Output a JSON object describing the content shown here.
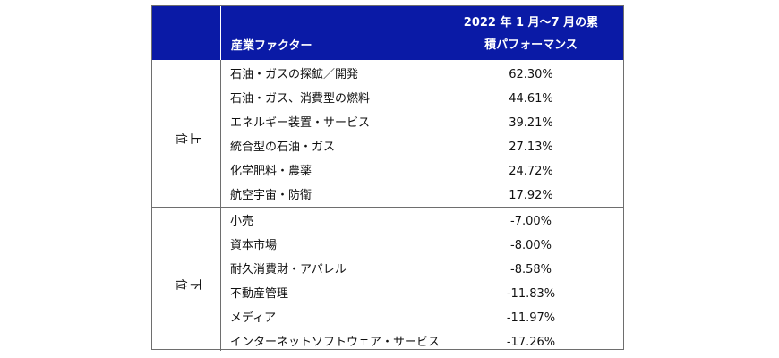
{
  "header": {
    "factor_label": "産業ファクター",
    "performance_label_line1": "2022 年 1 月～7 月の累",
    "performance_label_line2": "積パフォーマンス"
  },
  "sections": [
    {
      "label": "上位",
      "rows": [
        {
          "name": "石油・ガスの探鉱／開発",
          "value": "62.30%"
        },
        {
          "name": "石油・ガス、消費型の燃料",
          "value": "44.61%"
        },
        {
          "name": "エネルギー装置・サービス",
          "value": "39.21%"
        },
        {
          "name": "統合型の石油・ガス",
          "value": "27.13%"
        },
        {
          "name": "化学肥料・農薬",
          "value": "24.72%"
        },
        {
          "name": "航空宇宙・防衛",
          "value": "17.92%"
        }
      ]
    },
    {
      "label": "下位",
      "rows": [
        {
          "name": "小売",
          "value": "-7.00%"
        },
        {
          "name": "資本市場",
          "value": "-8.00%"
        },
        {
          "name": "耐久消費財・アパレル",
          "value": "-8.58%"
        },
        {
          "name": "不動産管理",
          "value": "-11.83%"
        },
        {
          "name": "メディア",
          "value": "-11.97%"
        },
        {
          "name": "インターネットソフトウェア・サービス",
          "value": "-17.26%"
        }
      ]
    }
  ],
  "colors": {
    "header_bg": "#0a1aa6",
    "header_text": "#ffffff",
    "border": "#6e6e6e"
  }
}
